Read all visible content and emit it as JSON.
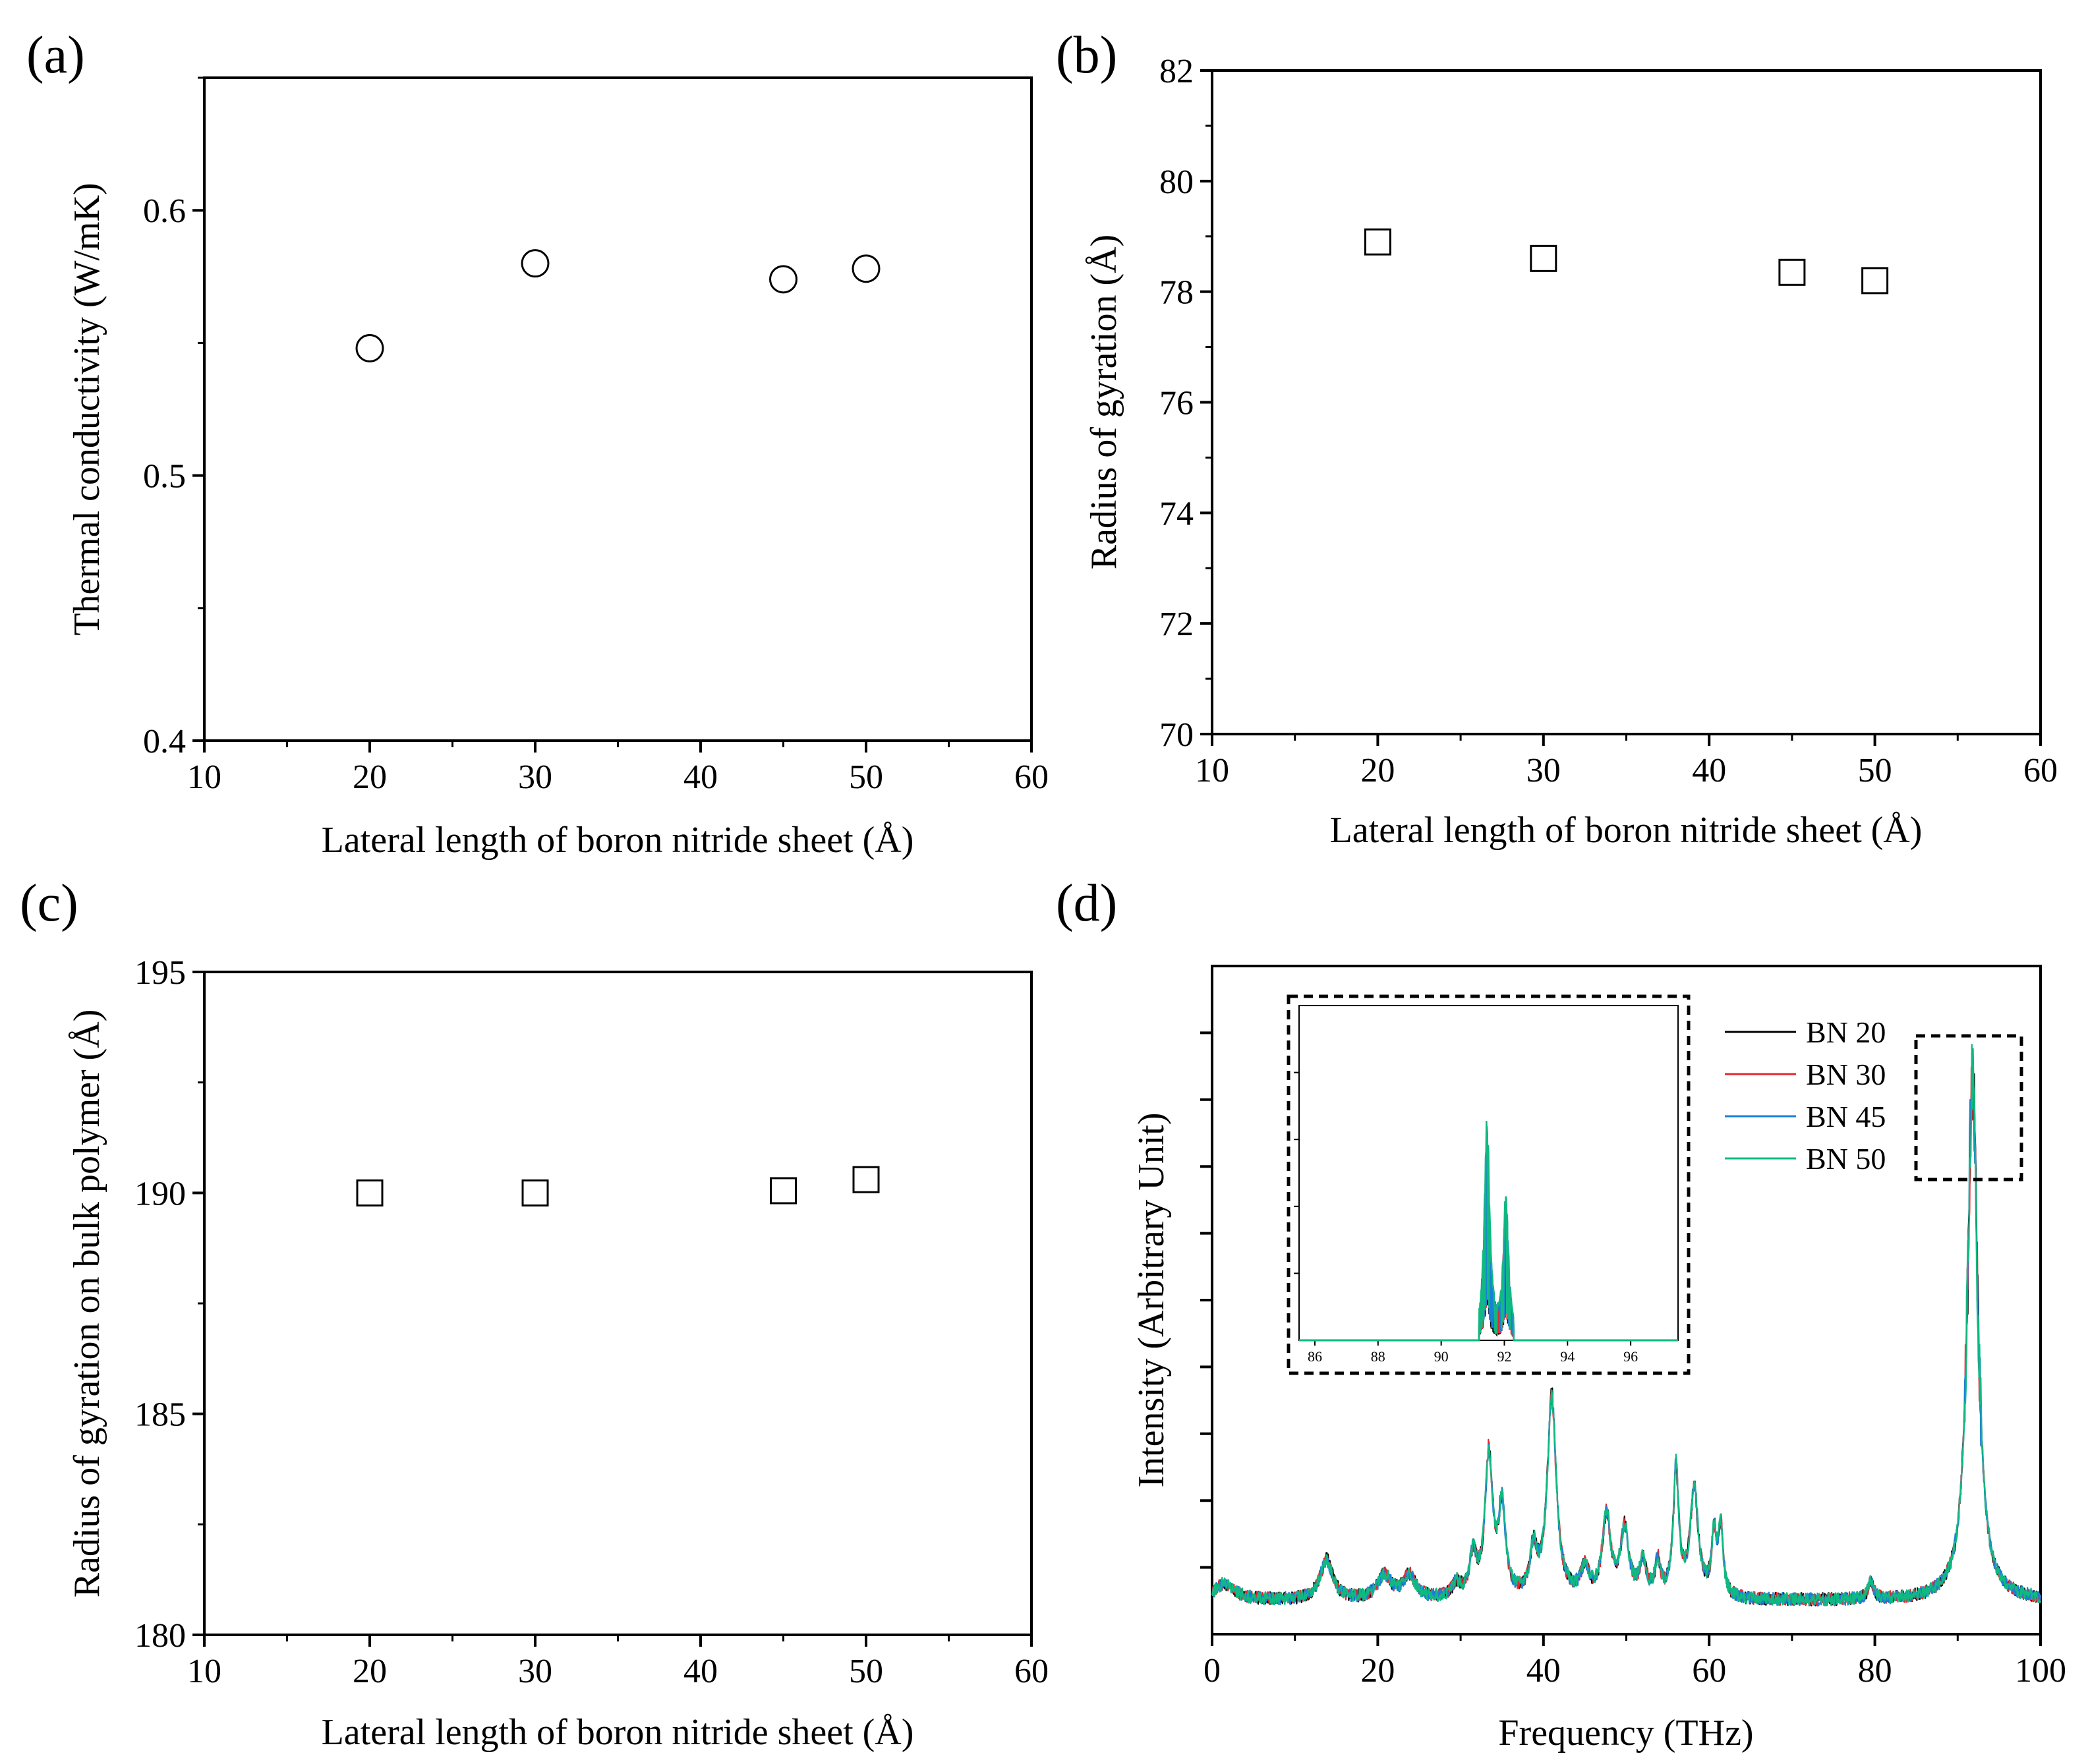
{
  "figure": {
    "background": "#ffffff",
    "text_color": "#000000"
  },
  "chart_data": [
    {
      "id": "a",
      "panel_label": "(a)",
      "type": "scatter",
      "marker": "circle",
      "xlabel": "Lateral length of boron nitride sheet (Å)",
      "ylabel": "Thermal conductivity (W/mK)",
      "xlim": [
        10,
        60
      ],
      "ylim": [
        0.4,
        0.65
      ],
      "xticks": [
        10,
        20,
        30,
        40,
        50,
        60
      ],
      "xtick_labels": [
        "10",
        "20",
        "30",
        "40",
        "50",
        "60"
      ],
      "yticks": [
        0.4,
        0.5,
        0.6
      ],
      "ytick_labels": [
        "0.4",
        "0.5",
        "0.6"
      ],
      "x": [
        20,
        30,
        45,
        50
      ],
      "y": [
        0.548,
        0.58,
        0.574,
        0.578
      ]
    },
    {
      "id": "b",
      "panel_label": "(b)",
      "type": "scatter",
      "marker": "square",
      "xlabel": "Lateral length of boron nitride sheet (Å)",
      "ylabel": "Radius of gyration (Å)",
      "xlim": [
        10,
        60
      ],
      "ylim": [
        70,
        82
      ],
      "xticks": [
        10,
        20,
        30,
        40,
        50,
        60
      ],
      "xtick_labels": [
        "10",
        "20",
        "30",
        "40",
        "50",
        "60"
      ],
      "yticks": [
        70,
        72,
        74,
        76,
        78,
        80,
        82
      ],
      "ytick_labels": [
        "70",
        "72",
        "74",
        "76",
        "78",
        "80",
        "82"
      ],
      "x": [
        20,
        30,
        45,
        50
      ],
      "y": [
        78.9,
        78.6,
        78.35,
        78.2
      ]
    },
    {
      "id": "c",
      "panel_label": "(c)",
      "type": "scatter",
      "marker": "square",
      "xlabel": "Lateral length of boron nitride sheet (Å)",
      "ylabel": "Radius of gyration on bulk polymer (Å)",
      "xlim": [
        10,
        60
      ],
      "ylim": [
        180,
        195
      ],
      "xticks": [
        10,
        20,
        30,
        40,
        50,
        60
      ],
      "xtick_labels": [
        "10",
        "20",
        "30",
        "40",
        "50",
        "60"
      ],
      "yticks": [
        180,
        185,
        190,
        195
      ],
      "ytick_labels": [
        "180",
        "185",
        "190",
        "195"
      ],
      "x": [
        20,
        30,
        45,
        50
      ],
      "y": [
        190.0,
        190.0,
        190.05,
        190.3
      ]
    },
    {
      "id": "d",
      "panel_label": "(d)",
      "type": "line",
      "xlabel": "Frequency (THz)",
      "ylabel": "Intensity (Arbitrary Unit)",
      "xlim": [
        0,
        100
      ],
      "ylim": [
        0,
        1
      ],
      "xticks": [
        0,
        20,
        40,
        60,
        80,
        100
      ],
      "xtick_labels": [
        "0",
        "20",
        "40",
        "60",
        "80",
        "100"
      ],
      "baseline": 0.05,
      "peaks": [
        {
          "center": 1.5,
          "height": 0.025,
          "width": 1.5
        },
        {
          "center": 13.8,
          "height": 0.06,
          "width": 0.9
        },
        {
          "center": 20.8,
          "height": 0.035,
          "width": 1.0
        },
        {
          "center": 23.8,
          "height": 0.035,
          "width": 0.9
        },
        {
          "center": 29.5,
          "height": 0.02,
          "width": 0.6
        },
        {
          "center": 31.5,
          "height": 0.06,
          "width": 0.5
        },
        {
          "center": 33.4,
          "height": 0.21,
          "width": 0.55
        },
        {
          "center": 35.0,
          "height": 0.13,
          "width": 0.5
        },
        {
          "center": 38.8,
          "height": 0.065,
          "width": 0.5
        },
        {
          "center": 41.0,
          "height": 0.3,
          "width": 0.65
        },
        {
          "center": 45.0,
          "height": 0.04,
          "width": 0.6
        },
        {
          "center": 47.6,
          "height": 0.12,
          "width": 0.6
        },
        {
          "center": 49.8,
          "height": 0.1,
          "width": 0.6
        },
        {
          "center": 52.0,
          "height": 0.05,
          "width": 0.5
        },
        {
          "center": 53.8,
          "height": 0.05,
          "width": 0.4
        },
        {
          "center": 56.0,
          "height": 0.19,
          "width": 0.4
        },
        {
          "center": 58.2,
          "height": 0.16,
          "width": 0.6
        },
        {
          "center": 60.6,
          "height": 0.09,
          "width": 0.35
        },
        {
          "center": 61.4,
          "height": 0.1,
          "width": 0.35
        },
        {
          "center": 79.5,
          "height": 0.025,
          "width": 0.4
        },
        {
          "center": 91.8,
          "height": 0.78,
          "width": 0.75
        }
      ],
      "series": [
        {
          "name": "BN 20",
          "color": "#000000"
        },
        {
          "name": "BN 30",
          "color": "#e8262b"
        },
        {
          "name": "BN 45",
          "color": "#1a7fd8"
        },
        {
          "name": "BN 50",
          "color": "#10b981"
        }
      ],
      "inset": {
        "xlim": [
          85.5,
          97.5
        ],
        "xticks": [
          86,
          88,
          90,
          92,
          94,
          96
        ],
        "xtick_labels": [
          "86",
          "88",
          "90",
          "92",
          "94",
          "96"
        ],
        "peaks": [
          {
            "center": 91.45,
            "height": 0.62,
            "width": 0.1
          },
          {
            "center": 92.05,
            "height": 0.4,
            "width": 0.1
          }
        ]
      }
    }
  ]
}
